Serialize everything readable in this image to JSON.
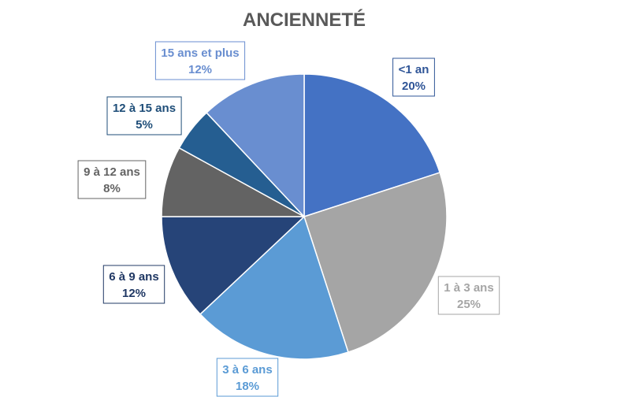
{
  "chart_data": {
    "type": "pie",
    "title": "ANCIENNETÉ",
    "legend": "none",
    "slices": [
      {
        "label": "<1 an",
        "value": 20,
        "value_label": "20%",
        "color": "#4472C4",
        "label_color": "#2F5597"
      },
      {
        "label": "1 à 3 ans",
        "value": 25,
        "value_label": "25%",
        "color": "#A5A5A5",
        "label_color": "#A5A5A5"
      },
      {
        "label": "3 à 6 ans",
        "value": 18,
        "value_label": "18%",
        "color": "#5B9BD5",
        "label_color": "#5B9BD5"
      },
      {
        "label": "6 à 9 ans",
        "value": 12,
        "value_label": "12%",
        "color": "#264478",
        "label_color": "#203864"
      },
      {
        "label": "9 à 12 ans",
        "value": 8,
        "value_label": "8%",
        "color": "#636363",
        "label_color": "#636363"
      },
      {
        "label": "12 à 15 ans",
        "value": 5,
        "value_label": "5%",
        "color": "#255E91",
        "label_color": "#1F4E79"
      },
      {
        "label": "15 ans et plus",
        "value": 12,
        "value_label": "12%",
        "color": "#698ED0",
        "label_color": "#698ED0"
      }
    ]
  }
}
